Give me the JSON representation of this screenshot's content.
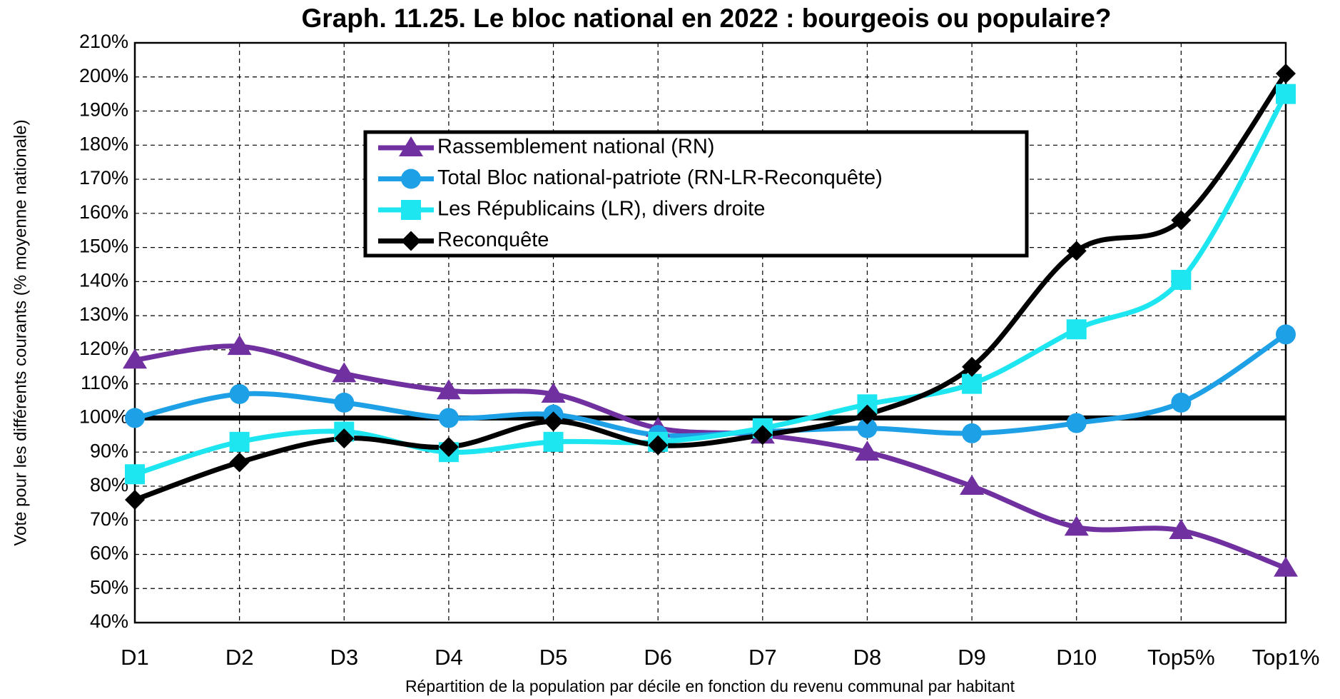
{
  "chart_data": {
    "type": "line",
    "title": "Graph. 11.25. Le bloc national en 2022 : bourgeois ou populaire?",
    "x_label": "Répartition de la population par décile en fonction du revenu communal par habitant",
    "y_label": "Vote pour les différents courants (% moyenne nationale)",
    "categories": [
      "D1",
      "D2",
      "D3",
      "D4",
      "D5",
      "D6",
      "D7",
      "D8",
      "D9",
      "D10",
      "Top5%",
      "Top1%"
    ],
    "series": [
      {
        "name": "Rassemblement national (RN)",
        "color": "#7030a0",
        "marker": "triangle",
        "values": [
          117,
          121,
          113,
          108,
          107,
          97,
          95,
          90,
          80,
          68,
          67,
          56
        ]
      },
      {
        "name": "Total Bloc national-patriote (RN-LR-Reconquête)",
        "color": "#1ea0e6",
        "marker": "circle",
        "values": [
          100,
          107,
          104.5,
          100,
          101,
          95,
          96,
          97,
          95.5,
          98.5,
          104.5,
          124.5
        ]
      },
      {
        "name": "Les Républicains (LR), divers droite",
        "color": "#1ee6f0",
        "marker": "square",
        "values": [
          83.5,
          93,
          96,
          90,
          93,
          93,
          97,
          104,
          110,
          126,
          140.5,
          195
        ]
      },
      {
        "name": "Reconquête",
        "color": "#000000",
        "marker": "diamond",
        "values": [
          76,
          87,
          94,
          91.5,
          99,
          92,
          95,
          101,
          115,
          149,
          158,
          201
        ]
      }
    ],
    "reference_line": 100,
    "ylim": [
      40,
      210
    ],
    "yticks": [
      {
        "value": 40,
        "label": "40%"
      },
      {
        "value": 50,
        "label": "50%"
      },
      {
        "value": 60,
        "label": "60%"
      },
      {
        "value": 70,
        "label": "70%"
      },
      {
        "value": 80,
        "label": "80%"
      },
      {
        "value": 90,
        "label": "90%"
      },
      {
        "value": 100,
        "label": "100%"
      },
      {
        "value": 110,
        "label": "110%"
      },
      {
        "value": 120,
        "label": "120%"
      },
      {
        "value": 130,
        "label": "130%"
      },
      {
        "value": 140,
        "label": "140%"
      },
      {
        "value": 150,
        "label": "150%"
      },
      {
        "value": 160,
        "label": "160%"
      },
      {
        "value": 170,
        "label": "170%"
      },
      {
        "value": 180,
        "label": "180%"
      },
      {
        "value": 190,
        "label": "190%"
      },
      {
        "value": 200,
        "label": "200%"
      },
      {
        "value": 210,
        "label": "210%"
      }
    ],
    "grid": true
  }
}
